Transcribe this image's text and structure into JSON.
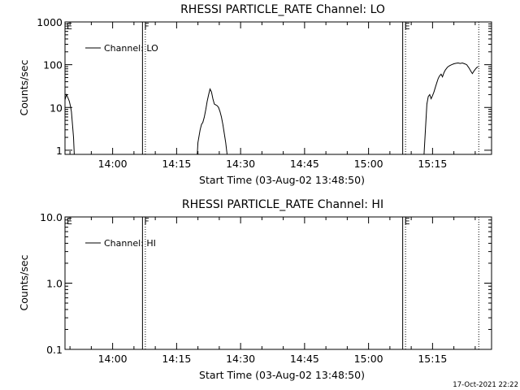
{
  "footer": {
    "timestamp": "17-Oct-2021 22:22"
  },
  "chart_data": [
    {
      "type": "line",
      "title": "RHESSI PARTICLE_RATE Channel: LO",
      "xlabel": "Start Time (03-Aug-02 13:48:50)",
      "ylabel": "Counts/sec",
      "y_scale": "log",
      "ylim": [
        0.8,
        1000
      ],
      "xlim": [
        "13:48:50",
        "15:28:50"
      ],
      "y_ticks": [
        "1",
        "10",
        "100",
        "1000"
      ],
      "x_ticks": [
        "14:00",
        "14:15",
        "14:30",
        "14:45",
        "15:00",
        "15:15"
      ],
      "legend": {
        "label": "Channel: LO",
        "position": "top-left"
      },
      "flags": [
        {
          "label": "E",
          "time": "13:48:50",
          "style": "solid"
        },
        {
          "label": "F",
          "time": "14:07:00",
          "style": "solid"
        },
        {
          "label": "",
          "time": "14:07:40",
          "style": "dotted"
        },
        {
          "label": "E",
          "time": "15:08:00",
          "style": "solid"
        },
        {
          "label": "",
          "time": "15:08:40",
          "style": "dotted"
        },
        {
          "label": "",
          "time": "15:25:50",
          "style": "dotted"
        }
      ],
      "series": [
        {
          "name": "Channel: LO",
          "segments": [
            [
              [
                "13:48:50",
                15
              ],
              [
                "13:49:10",
                20
              ],
              [
                "13:49:30",
                17
              ],
              [
                "13:49:50",
                14
              ],
              [
                "13:50:05",
                11
              ],
              [
                "13:50:20",
                8
              ],
              [
                "13:50:35",
                4
              ],
              [
                "13:50:50",
                2
              ],
              [
                "13:51:00",
                0.8
              ]
            ],
            [
              [
                "14:19:50",
                0.8
              ],
              [
                "14:20:00",
                1.5
              ],
              [
                "14:20:30",
                3
              ],
              [
                "14:20:50",
                4
              ],
              [
                "14:21:10",
                4.5
              ],
              [
                "14:21:30",
                6
              ],
              [
                "14:21:50",
                9
              ],
              [
                "14:22:10",
                14
              ],
              [
                "14:22:30",
                20
              ],
              [
                "14:22:50",
                27
              ],
              [
                "14:23:10",
                23
              ],
              [
                "14:23:30",
                16
              ],
              [
                "14:23:50",
                12
              ],
              [
                "14:24:10",
                11.5
              ],
              [
                "14:24:30",
                11
              ],
              [
                "14:24:50",
                10
              ],
              [
                "14:25:10",
                8
              ],
              [
                "14:25:30",
                6
              ],
              [
                "14:25:50",
                4
              ],
              [
                "14:26:10",
                2.5
              ],
              [
                "14:26:30",
                1.5
              ],
              [
                "14:26:50",
                0.8
              ]
            ],
            [
              [
                "15:13:00",
                0.8
              ],
              [
                "15:13:20",
                3
              ],
              [
                "15:13:40",
                12
              ],
              [
                "15:14:00",
                18
              ],
              [
                "15:14:20",
                20
              ],
              [
                "15:14:40",
                16
              ],
              [
                "15:15:00",
                19
              ],
              [
                "15:15:20",
                23
              ],
              [
                "15:15:40",
                30
              ],
              [
                "15:16:00",
                38
              ],
              [
                "15:16:20",
                48
              ],
              [
                "15:16:40",
                55
              ],
              [
                "15:17:00",
                60
              ],
              [
                "15:17:20",
                52
              ],
              [
                "15:17:40",
                65
              ],
              [
                "15:18:00",
                75
              ],
              [
                "15:18:30",
                88
              ],
              [
                "15:19:00",
                95
              ],
              [
                "15:19:30",
                100
              ],
              [
                "15:20:00",
                105
              ],
              [
                "15:20:30",
                108
              ],
              [
                "15:21:00",
                110
              ],
              [
                "15:21:30",
                107
              ],
              [
                "15:22:00",
                110
              ],
              [
                "15:22:30",
                105
              ],
              [
                "15:23:00",
                100
              ],
              [
                "15:23:30",
                85
              ],
              [
                "15:24:00",
                70
              ],
              [
                "15:24:20",
                62
              ],
              [
                "15:24:40",
                70
              ],
              [
                "15:25:00",
                78
              ],
              [
                "15:25:20",
                85
              ],
              [
                "15:25:40",
                90
              ]
            ]
          ]
        }
      ]
    },
    {
      "type": "line",
      "title": "RHESSI PARTICLE_RATE Channel: HI",
      "xlabel": "Start Time (03-Aug-02 13:48:50)",
      "ylabel": "Counts/sec",
      "y_scale": "log",
      "ylim": [
        0.1,
        10
      ],
      "xlim": [
        "13:48:50",
        "15:28:50"
      ],
      "y_ticks": [
        "0.1",
        "1.0",
        "10.0"
      ],
      "x_ticks": [
        "14:00",
        "14:15",
        "14:30",
        "14:45",
        "15:00",
        "15:15"
      ],
      "legend": {
        "label": "Channel: HI",
        "position": "top-left"
      },
      "flags": [
        {
          "label": "E",
          "time": "13:48:50",
          "style": "solid"
        },
        {
          "label": "F",
          "time": "14:07:00",
          "style": "solid"
        },
        {
          "label": "",
          "time": "14:07:40",
          "style": "dotted"
        },
        {
          "label": "E",
          "time": "15:08:00",
          "style": "solid"
        },
        {
          "label": "",
          "time": "15:08:40",
          "style": "dotted"
        },
        {
          "label": "",
          "time": "15:25:50",
          "style": "dotted"
        }
      ],
      "series": [
        {
          "name": "Channel: HI",
          "segments": []
        }
      ]
    }
  ]
}
